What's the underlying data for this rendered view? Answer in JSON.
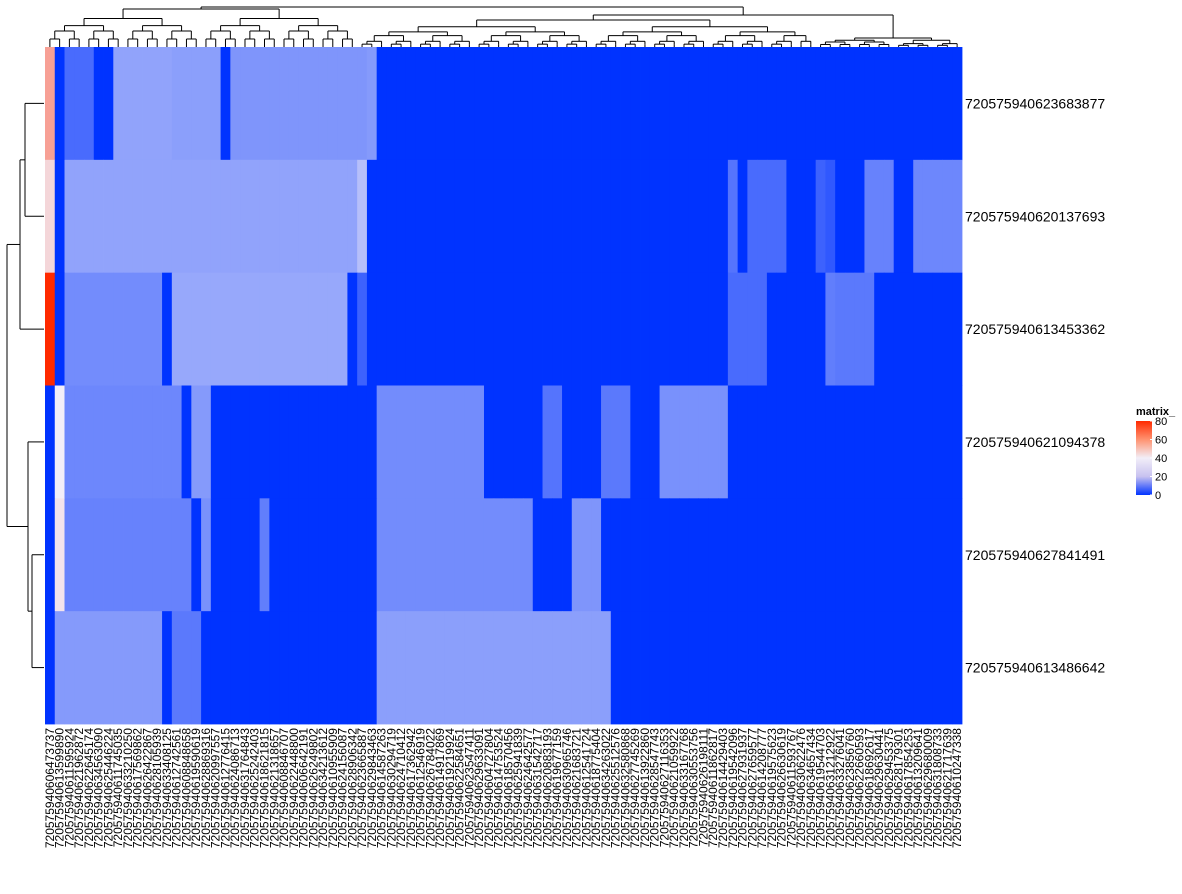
{
  "chart_data": {
    "type": "heatmap",
    "rows": [
      "720575940623683877",
      "720575940620137693",
      "720575940613453362",
      "720575940621094378",
      "720575940627841491",
      "720575940613486642"
    ],
    "columns": [
      "720575940606473737",
      "720575940613599890",
      "720575940611595924",
      "720575940621962872",
      "720575940622645174",
      "720575940634563090",
      "720575940625446224",
      "720575940611745035",
      "720575940633210250",
      "720575940617569862",
      "720575940626422867",
      "720575940628105939",
      "720575940633408125",
      "720575940612742561",
      "720575940608848658",
      "720575940619590619",
      "720575940628869316",
      "720575940620997557",
      "720575940612776415",
      "720575940624086713",
      "720575940631764843",
      "720575940625242403",
      "720575940618621815",
      "720575940621318657",
      "720575940608846707",
      "720575940622448800",
      "720575940606642191",
      "720575940626249802",
      "720575940634213612",
      "720575940610955909",
      "720575940624156087",
      "720575940628906342",
      "720575940623665887",
      "720575940629843463",
      "720575940614587263",
      "720575940630294719",
      "720575940624710412",
      "720575940617362942",
      "720575940612546919",
      "720575940626784022",
      "720575940614917869",
      "720575940619219924",
      "720575940622584651",
      "720575940623547411",
      "720575940629633091",
      "720575940604727804",
      "720575940614753524",
      "720575940618570456",
      "720575940625941839",
      "720575940624642577",
      "720575940631542717",
      "720575940620883193",
      "720575940619677159",
      "720575940630965746",
      "720575940621683721",
      "720575940612541724",
      "720575940618775404",
      "720575940634263022",
      "720575940625512576",
      "720575940632580868",
      "720575940627745269",
      "720575940613922860",
      "720575940628547743",
      "720575940627116353",
      "720575940621059922",
      "720575940633167768",
      "720575940630553756",
      "720575940626198111",
      "720575940611862817",
      "720575940614429403",
      "720575940619542096",
      "720575940627931937",
      "720575940627659577",
      "720575940614208777",
      "720575940619575623",
      "720575940626630619",
      "720575940611593767",
      "720575940630622476",
      "720575940634657434",
      "720575940619544703",
      "720575940631212922",
      "720575940633276041",
      "720575940623856760",
      "720575940622660593",
      "720575940618692617",
      "720575940629630441",
      "720575940629453375",
      "720575940628179301",
      "720575940617854253",
      "720575940613209641",
      "720575940629680009",
      "720575940631808733",
      "720575940621717639",
      "720575940610247338"
    ],
    "legend": {
      "title": "matrix_",
      "ticks": [
        0,
        20,
        40,
        60,
        80
      ],
      "range": [
        0,
        80
      ]
    },
    "colors": {
      "low": "#0033ff",
      "mid": "#f2eef8",
      "high": "#ff2a00"
    },
    "col_blocks": [
      [
        [
          0,
          0,
          56
        ],
        [
          1,
          1,
          0
        ],
        [
          2,
          4,
          12
        ],
        [
          5,
          6,
          0
        ],
        [
          7,
          12,
          24
        ],
        [
          13,
          17,
          23
        ],
        [
          18,
          18,
          0
        ],
        [
          19,
          32,
          21
        ],
        [
          33,
          33,
          22
        ],
        [
          34,
          93,
          0
        ]
      ],
      [
        [
          0,
          0,
          45
        ],
        [
          1,
          1,
          0
        ],
        [
          2,
          31,
          24
        ],
        [
          32,
          32,
          30
        ],
        [
          33,
          69,
          0
        ],
        [
          70,
          70,
          14
        ],
        [
          71,
          71,
          0
        ],
        [
          72,
          75,
          12
        ],
        [
          76,
          78,
          0
        ],
        [
          79,
          79,
          10
        ],
        [
          80,
          80,
          8
        ],
        [
          81,
          83,
          0
        ],
        [
          84,
          86,
          17
        ],
        [
          87,
          87,
          0
        ],
        [
          88,
          88,
          0
        ],
        [
          89,
          93,
          18
        ]
      ],
      [
        [
          0,
          0,
          80
        ],
        [
          1,
          1,
          0
        ],
        [
          2,
          11,
          19
        ],
        [
          12,
          12,
          0
        ],
        [
          13,
          30,
          25
        ],
        [
          31,
          31,
          0
        ],
        [
          32,
          32,
          10
        ],
        [
          33,
          69,
          0
        ],
        [
          70,
          73,
          12
        ],
        [
          74,
          79,
          0
        ],
        [
          80,
          80,
          16
        ],
        [
          81,
          84,
          15
        ],
        [
          85,
          93,
          0
        ]
      ],
      [
        [
          0,
          0,
          0
        ],
        [
          1,
          1,
          40
        ],
        [
          2,
          13,
          18
        ],
        [
          14,
          14,
          0
        ],
        [
          15,
          16,
          22
        ],
        [
          17,
          33,
          0
        ],
        [
          34,
          44,
          19
        ],
        [
          45,
          50,
          0
        ],
        [
          51,
          52,
          14
        ],
        [
          53,
          56,
          0
        ],
        [
          57,
          59,
          15
        ],
        [
          60,
          62,
          0
        ],
        [
          63,
          69,
          20
        ],
        [
          70,
          93,
          0
        ]
      ],
      [
        [
          0,
          0,
          0
        ],
        [
          1,
          1,
          42
        ],
        [
          2,
          14,
          17
        ],
        [
          15,
          15,
          0
        ],
        [
          16,
          16,
          20
        ],
        [
          17,
          21,
          0
        ],
        [
          22,
          22,
          16
        ],
        [
          23,
          33,
          0
        ],
        [
          34,
          49,
          19
        ],
        [
          50,
          53,
          0
        ],
        [
          54,
          56,
          21
        ],
        [
          57,
          62,
          0
        ],
        [
          63,
          93,
          0
        ]
      ],
      [
        [
          0,
          0,
          0
        ],
        [
          1,
          11,
          22
        ],
        [
          12,
          12,
          0
        ],
        [
          13,
          15,
          15
        ],
        [
          16,
          33,
          0
        ],
        [
          34,
          57,
          23
        ],
        [
          58,
          93,
          0
        ]
      ]
    ]
  }
}
